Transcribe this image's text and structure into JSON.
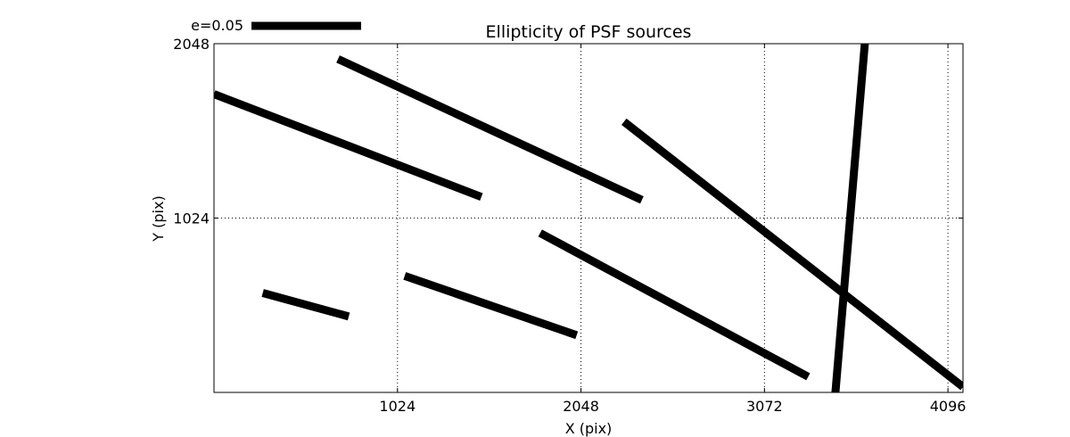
{
  "chart_data": {
    "type": "vector_field",
    "title": "Ellipticity of PSF sources",
    "xlabel": "X (pix)",
    "ylabel": "Y (pix)",
    "xlim": [
      0,
      4180
    ],
    "ylim": [
      0,
      2048
    ],
    "x_ticks": [
      {
        "value": 1024,
        "label": "1024"
      },
      {
        "value": 2048,
        "label": "2048"
      },
      {
        "value": 3072,
        "label": "3072"
      },
      {
        "value": 4096,
        "label": "4096"
      }
    ],
    "y_ticks": [
      {
        "value": 1024,
        "label": "1024"
      },
      {
        "value": 2048,
        "label": "2048"
      }
    ],
    "grid": true,
    "legend": {
      "label": "e=0.05",
      "length_pix": 612,
      "placement": "top-left"
    },
    "segments": [
      {
        "x1": 0,
        "y1": 1752,
        "x2": 1492,
        "y2": 1148
      },
      {
        "x1": 692,
        "y1": 1958,
        "x2": 2388,
        "y2": 1130
      },
      {
        "x1": 2288,
        "y1": 1590,
        "x2": 4180,
        "y2": 32
      },
      {
        "x1": 3632,
        "y1": 2048,
        "x2": 3468,
        "y2": 0
      },
      {
        "x1": 1820,
        "y1": 936,
        "x2": 3316,
        "y2": 92
      },
      {
        "x1": 1064,
        "y1": 684,
        "x2": 2024,
        "y2": 336
      },
      {
        "x1": 272,
        "y1": 584,
        "x2": 752,
        "y2": 446
      }
    ],
    "color": "#000000"
  }
}
